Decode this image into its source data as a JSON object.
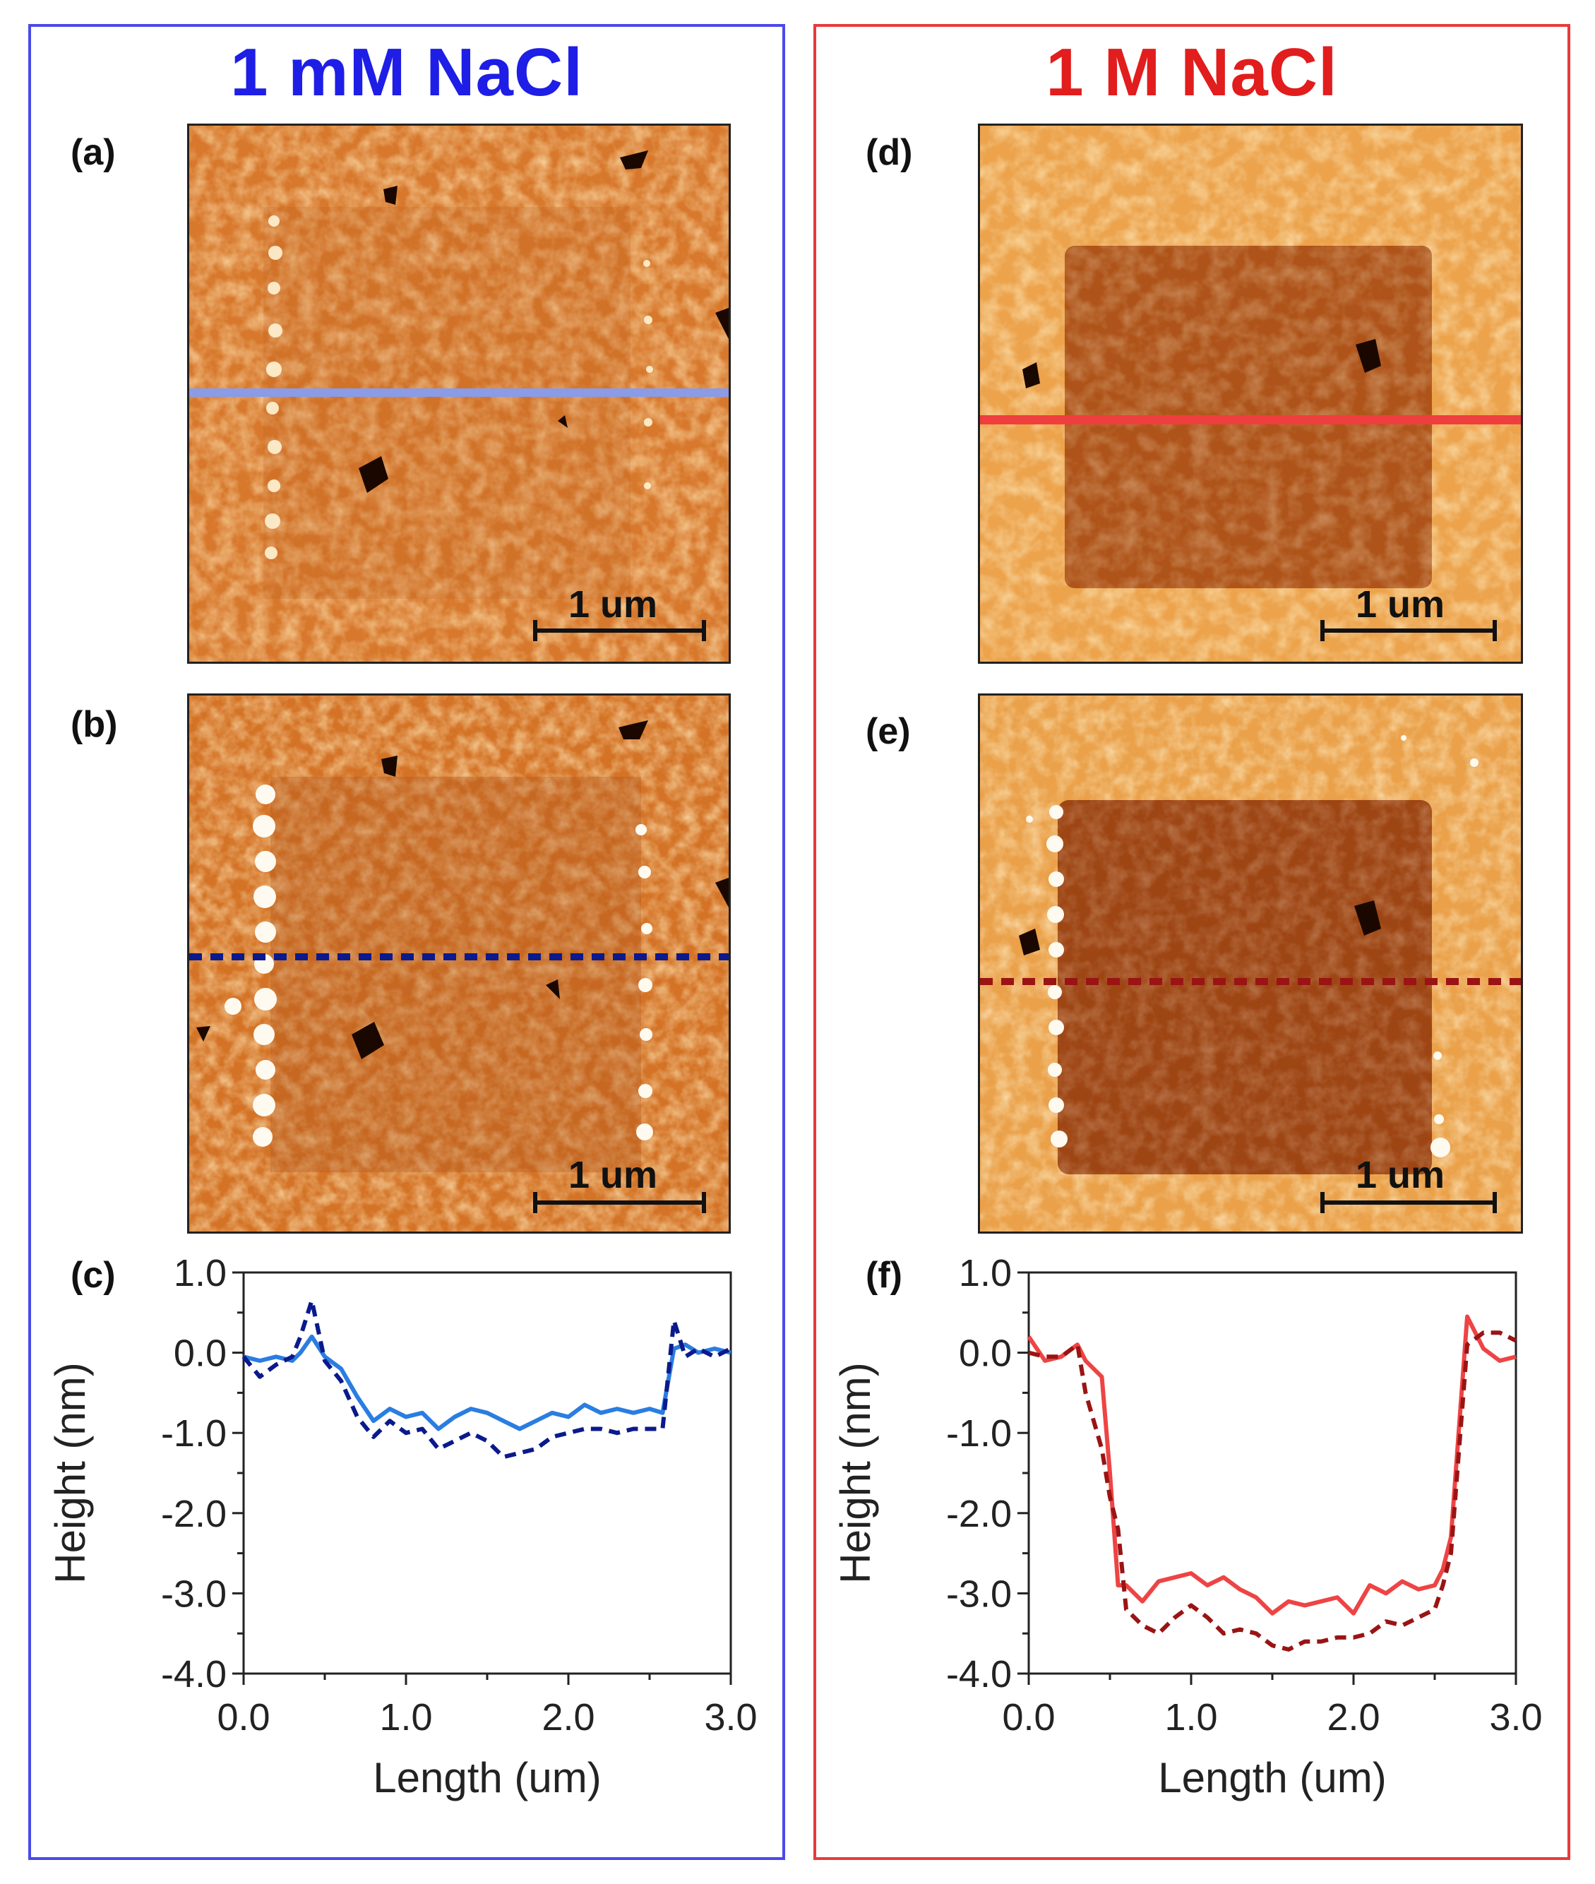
{
  "columns": {
    "left": {
      "title": "1 mM NaCl",
      "color": "#1e1ee6"
    },
    "right": {
      "title": "1 M NaCl",
      "color": "#e11d1d"
    }
  },
  "panels": {
    "a": {
      "label": "(a)",
      "scalebar": "1 um"
    },
    "b": {
      "label": "(b)",
      "scalebar": "1 um"
    },
    "c": {
      "label": "(c)"
    },
    "d": {
      "label": "(d)",
      "scalebar": "1 um"
    },
    "e": {
      "label": "(e)",
      "scalebar": "1 um"
    },
    "f": {
      "label": "(f)"
    }
  },
  "chart_data": [
    {
      "id": "c",
      "type": "line",
      "title": "",
      "xlabel": "Length (um)",
      "ylabel": "Height (nm)",
      "xlim": [
        0.0,
        3.0
      ],
      "ylim": [
        -4.0,
        1.0
      ],
      "xticks": [
        "0.0",
        "1.0",
        "2.0",
        "3.0"
      ],
      "yticks": [
        "1.0",
        "0.0",
        "-1.0",
        "-2.0",
        "-3.0",
        "-4.0"
      ],
      "series": [
        {
          "name": "solid",
          "color": "#2a7de1",
          "style": "solid",
          "x": [
            0.0,
            0.1,
            0.2,
            0.3,
            0.35,
            0.42,
            0.5,
            0.6,
            0.7,
            0.8,
            0.9,
            1.0,
            1.1,
            1.2,
            1.3,
            1.4,
            1.5,
            1.6,
            1.7,
            1.8,
            1.9,
            2.0,
            2.1,
            2.2,
            2.3,
            2.4,
            2.5,
            2.58,
            2.65,
            2.72,
            2.8,
            2.9,
            3.0
          ],
          "y": [
            -0.05,
            -0.1,
            -0.05,
            -0.1,
            0.0,
            0.2,
            -0.05,
            -0.2,
            -0.55,
            -0.85,
            -0.7,
            -0.8,
            -0.75,
            -0.95,
            -0.8,
            -0.7,
            -0.75,
            -0.85,
            -0.95,
            -0.85,
            -0.75,
            -0.8,
            -0.65,
            -0.75,
            -0.7,
            -0.75,
            -0.7,
            -0.75,
            0.05,
            0.1,
            0.0,
            0.05,
            0.0
          ]
        },
        {
          "name": "dashed",
          "color": "#0a1a8c",
          "style": "dashed",
          "x": [
            0.0,
            0.1,
            0.2,
            0.3,
            0.35,
            0.42,
            0.5,
            0.6,
            0.7,
            0.8,
            0.9,
            1.0,
            1.1,
            1.2,
            1.3,
            1.4,
            1.5,
            1.6,
            1.7,
            1.8,
            1.9,
            2.0,
            2.1,
            2.2,
            2.3,
            2.4,
            2.5,
            2.58,
            2.65,
            2.72,
            2.8,
            2.9,
            3.0
          ],
          "y": [
            -0.05,
            -0.3,
            -0.15,
            -0.05,
            0.2,
            0.65,
            -0.1,
            -0.35,
            -0.8,
            -1.05,
            -0.85,
            -1.0,
            -0.95,
            -1.2,
            -1.1,
            -1.0,
            -1.1,
            -1.3,
            -1.25,
            -1.2,
            -1.05,
            -1.0,
            -0.95,
            -0.95,
            -1.0,
            -0.95,
            -0.95,
            -0.95,
            0.4,
            -0.05,
            0.05,
            -0.05,
            0.05
          ]
        }
      ]
    },
    {
      "id": "f",
      "type": "line",
      "title": "",
      "xlabel": "Length (um)",
      "ylabel": "Height (nm)",
      "xlim": [
        0.0,
        3.0
      ],
      "ylim": [
        -4.0,
        1.0
      ],
      "xticks": [
        "0.0",
        "1.0",
        "2.0",
        "3.0"
      ],
      "yticks": [
        "1.0",
        "0.0",
        "-1.0",
        "-2.0",
        "-3.0",
        "-4.0"
      ],
      "series": [
        {
          "name": "solid",
          "color": "#ee4444",
          "style": "solid",
          "x": [
            0.0,
            0.1,
            0.2,
            0.3,
            0.35,
            0.45,
            0.5,
            0.55,
            0.6,
            0.7,
            0.8,
            0.9,
            1.0,
            1.1,
            1.2,
            1.3,
            1.4,
            1.5,
            1.6,
            1.7,
            1.8,
            1.9,
            2.0,
            2.1,
            2.2,
            2.3,
            2.4,
            2.5,
            2.55,
            2.6,
            2.7,
            2.8,
            2.9,
            3.0
          ],
          "y": [
            0.2,
            -0.1,
            -0.05,
            0.1,
            -0.1,
            -0.3,
            -1.5,
            -2.9,
            -2.9,
            -3.1,
            -2.85,
            -2.8,
            -2.75,
            -2.9,
            -2.8,
            -2.95,
            -3.05,
            -3.25,
            -3.1,
            -3.15,
            -3.1,
            -3.05,
            -3.25,
            -2.9,
            -3.0,
            -2.85,
            -2.95,
            -2.9,
            -2.7,
            -2.3,
            0.45,
            0.05,
            -0.1,
            -0.05
          ]
        },
        {
          "name": "dashed",
          "color": "#9a1414",
          "style": "dashed",
          "x": [
            0.0,
            0.1,
            0.2,
            0.3,
            0.35,
            0.45,
            0.5,
            0.55,
            0.6,
            0.7,
            0.8,
            0.9,
            1.0,
            1.1,
            1.2,
            1.3,
            1.4,
            1.5,
            1.6,
            1.7,
            1.8,
            1.9,
            2.0,
            2.1,
            2.2,
            2.3,
            2.4,
            2.5,
            2.55,
            2.6,
            2.7,
            2.8,
            2.9,
            3.0
          ],
          "y": [
            0.0,
            -0.05,
            -0.05,
            0.1,
            -0.5,
            -1.2,
            -1.8,
            -2.2,
            -3.2,
            -3.4,
            -3.5,
            -3.3,
            -3.15,
            -3.3,
            -3.5,
            -3.45,
            -3.5,
            -3.65,
            -3.7,
            -3.6,
            -3.6,
            -3.55,
            -3.55,
            -3.5,
            -3.35,
            -3.4,
            -3.3,
            -3.2,
            -2.9,
            -2.5,
            0.1,
            0.25,
            0.25,
            0.15
          ]
        }
      ]
    }
  ]
}
